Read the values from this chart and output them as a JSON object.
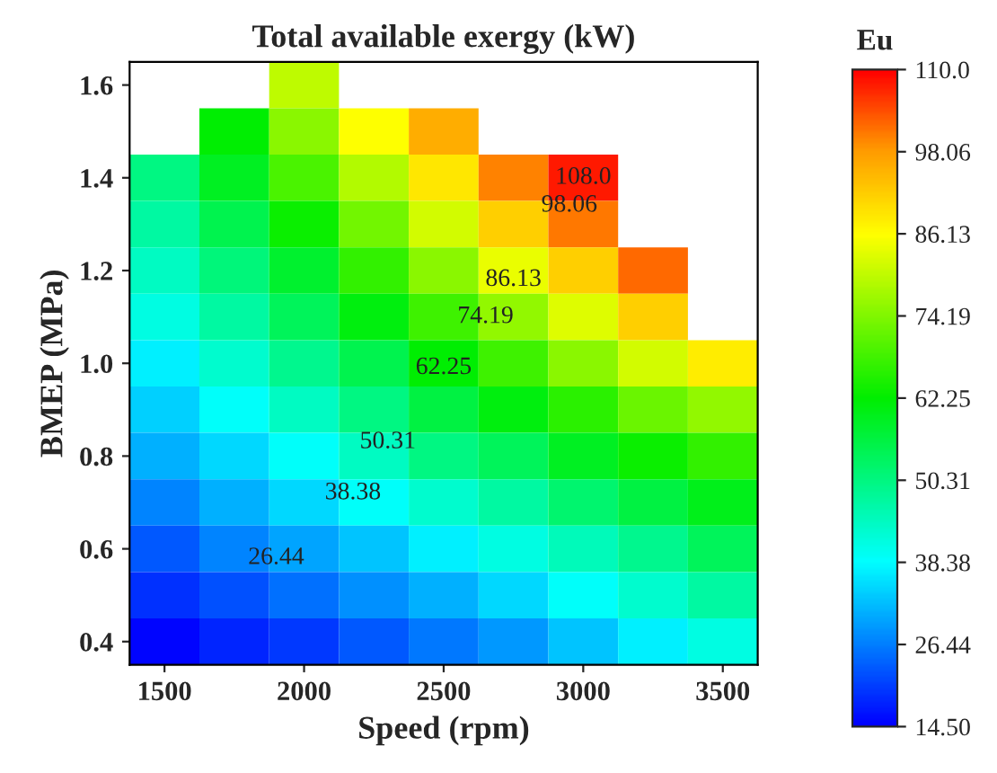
{
  "chart_data": {
    "type": "heatmap",
    "title": "Total available exergy (kW)",
    "xlabel": "Speed (rpm)",
    "ylabel": "BMEP (MPa)",
    "clabel": "Eu",
    "categories": [
      "1500",
      null,
      "2000",
      null,
      "2500",
      null,
      "3000",
      null,
      "3500"
    ],
    "y_categories": [
      "1.6",
      null,
      "1.4",
      null,
      "1.2",
      null,
      "1.0",
      null,
      "0.8",
      null,
      "0.6",
      null,
      "0.4"
    ],
    "cells": [
      [
        null,
        null,
        80,
        null,
        null,
        null,
        null,
        null,
        null
      ],
      [
        null,
        62,
        75,
        86,
        96,
        null,
        null,
        null,
        null
      ],
      [
        50,
        59,
        69,
        79,
        89,
        100,
        108,
        null,
        null
      ],
      [
        47,
        55,
        63,
        73,
        82,
        92,
        101,
        null,
        null
      ],
      [
        44,
        51,
        58,
        67,
        75,
        84,
        92,
        102,
        null
      ],
      [
        41,
        47,
        54,
        61,
        68,
        76,
        83,
        92,
        null
      ],
      [
        37,
        43,
        49,
        55,
        62,
        68,
        75,
        82,
        88
      ],
      [
        34,
        39,
        44,
        50,
        56,
        61,
        66,
        72,
        76
      ],
      [
        31,
        35,
        39,
        44,
        50,
        54,
        59,
        63,
        67
      ],
      [
        27,
        31,
        35,
        39,
        43,
        47,
        52,
        56,
        60
      ],
      [
        23,
        27,
        30,
        33,
        37,
        41,
        45,
        49,
        54
      ],
      [
        19,
        22,
        25,
        28,
        31,
        35,
        39,
        43,
        47
      ],
      [
        15,
        18,
        20,
        23,
        26,
        29,
        33,
        37,
        41
      ]
    ],
    "clim": [
      14.5,
      110.0
    ],
    "cticks": [
      {
        "value": 14.5,
        "label": "14.50"
      },
      26.44,
      38.38,
      50.31,
      62.25,
      74.19,
      86.13,
      98.06,
      {
        "value": 110.0,
        "label": "110.0"
      }
    ],
    "annotations": [
      "108.0",
      "98.06",
      "86.13",
      "74.19",
      "62.25",
      "50.31",
      "38.38",
      "26.44"
    ]
  }
}
